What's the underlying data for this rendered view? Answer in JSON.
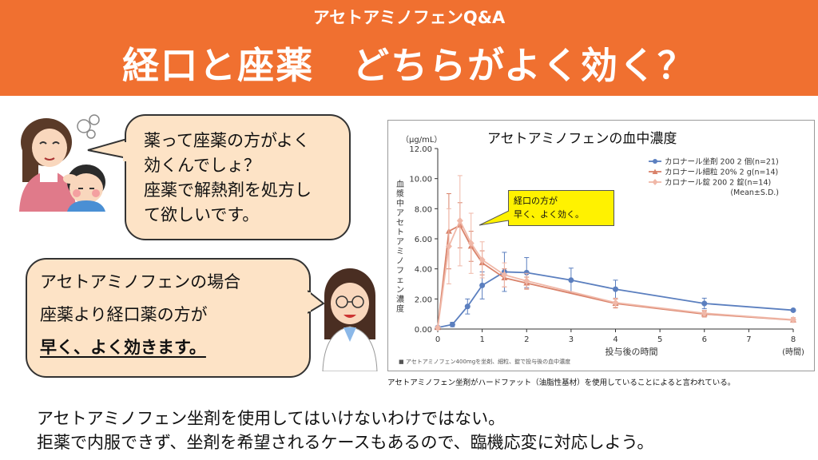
{
  "header": {
    "subtitle": "アセトアミノフェンQ&A",
    "title": "経口と座薬　どちらがよく効く？"
  },
  "bubble_question": {
    "lines": [
      "薬って座薬の方がよく",
      "効くんでしょ？",
      "座薬で解熱剤を処方し",
      "て欲しいです。"
    ]
  },
  "bubble_answer": {
    "lines": [
      "アセトアミノフェンの場合",
      "座薬より経口薬の方が",
      "早く、よく効きます。"
    ]
  },
  "chart_callout": {
    "line1": "経口の方が",
    "line2": "早く、よく効く。"
  },
  "chart_note": "アセトアミノフェン坐剤がハードファット（油脂性基材）を使用していることによると言われている。",
  "bottom_text": {
    "line1": "アセトアミノフェン坐剤を使用してはいけないわけではない。",
    "line2": "拒薬で内服できず、坐剤を希望されるケースもあるので、臨機応変に対応しよう。"
  },
  "colors": {
    "header": "#f07030",
    "bubble_fill": "#fde3c6",
    "callout_fill": "#fff200",
    "suppository": "#5b7fbf",
    "granules": "#d9826a",
    "tablet": "#f0b8a8"
  },
  "chart_data": {
    "type": "line",
    "title": "アセトアミノフェンの血中濃度",
    "unit_label": "（μg/mL）",
    "ylabel": "血漿中アセトアミノフェン濃度",
    "xlabel": "投与後の時間",
    "x_unit": "(時間)",
    "xlim": [
      0,
      8
    ],
    "ylim": [
      0,
      12
    ],
    "x_ticks": [
      "0",
      "1",
      "2",
      "3",
      "4",
      "5",
      "6",
      "7",
      "8"
    ],
    "y_ticks": [
      "0.00",
      "2.00",
      "4.00",
      "6.00",
      "8.00",
      "10.00",
      "12.00"
    ],
    "legend_position": "top-right",
    "legend_note": "(Mean±S.D.)",
    "footnote": "■ アセトアミノフェン400mgを坐剤、細粒、錠で投与後の血中濃度",
    "series": [
      {
        "name": "カロナール坐剤 200 2 個(n=21)",
        "marker": "circle",
        "color": "#5b7fbf",
        "points": [
          {
            "x": 0,
            "y": 0.1,
            "sd": 0
          },
          {
            "x": 0.33,
            "y": 0.3,
            "sd": 0.15
          },
          {
            "x": 0.67,
            "y": 1.5,
            "sd": 0.5
          },
          {
            "x": 1,
            "y": 2.9,
            "sd": 0.9
          },
          {
            "x": 1.5,
            "y": 3.8,
            "sd": 1.3
          },
          {
            "x": 2,
            "y": 3.75,
            "sd": 1.0
          },
          {
            "x": 3,
            "y": 3.25,
            "sd": 0.8
          },
          {
            "x": 4,
            "y": 2.65,
            "sd": 0.6
          },
          {
            "x": 6,
            "y": 1.7,
            "sd": 0.35
          },
          {
            "x": 8,
            "y": 1.25,
            "sd": 0
          }
        ]
      },
      {
        "name": "カロナール細粒 20% 2 g(n=14)",
        "marker": "triangle",
        "color": "#d9826a",
        "points": [
          {
            "x": 0,
            "y": 0.1,
            "sd": 0
          },
          {
            "x": 0.25,
            "y": 6.5,
            "sd": 2.5
          },
          {
            "x": 0.5,
            "y": 6.9,
            "sd": 1.5
          },
          {
            "x": 0.75,
            "y": 5.5,
            "sd": 1.0
          },
          {
            "x": 1,
            "y": 4.4,
            "sd": 0.8
          },
          {
            "x": 1.5,
            "y": 3.4,
            "sd": 0.6
          },
          {
            "x": 2,
            "y": 3.05,
            "sd": 0.4
          },
          {
            "x": 4,
            "y": 1.7,
            "sd": 0.3
          },
          {
            "x": 6,
            "y": 1.0,
            "sd": 0.2
          },
          {
            "x": 8,
            "y": 0.6,
            "sd": 0.15
          }
        ]
      },
      {
        "name": "カロナール錠 200 2 錠(n=14)",
        "marker": "diamond",
        "color": "#f0b8a8",
        "points": [
          {
            "x": 0,
            "y": 0.1,
            "sd": 0
          },
          {
            "x": 0.25,
            "y": 5.5,
            "sd": 2.5
          },
          {
            "x": 0.5,
            "y": 7.2,
            "sd": 3.0
          },
          {
            "x": 0.75,
            "y": 5.7,
            "sd": 2.0
          },
          {
            "x": 1,
            "y": 4.6,
            "sd": 1.2
          },
          {
            "x": 1.5,
            "y": 3.6,
            "sd": 0.8
          },
          {
            "x": 2,
            "y": 3.2,
            "sd": 0.5
          },
          {
            "x": 4,
            "y": 1.75,
            "sd": 0.3
          },
          {
            "x": 6,
            "y": 1.05,
            "sd": 0.2
          },
          {
            "x": 8,
            "y": 0.62,
            "sd": 0.15
          }
        ]
      }
    ]
  }
}
